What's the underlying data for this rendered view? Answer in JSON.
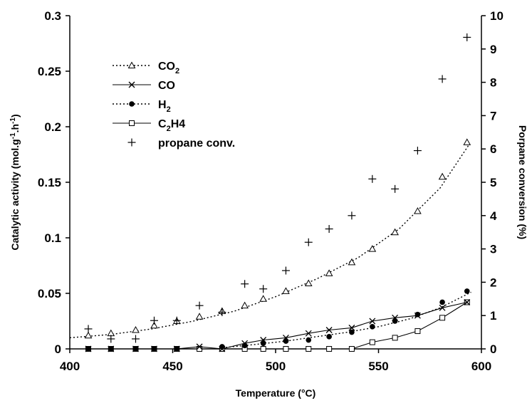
{
  "chart_data": {
    "type": "scatter",
    "xlabel": "Temperature (°C)",
    "ylabel": "Catalytic activity (mol.g-1.h-1)",
    "ylabel_parts": [
      "Catalytic activity (mol.g",
      "-1",
      ".h",
      "-1",
      ")"
    ],
    "y2label": "Porpane conversion (%)",
    "xlim": [
      400,
      600
    ],
    "ylim": [
      0,
      0.3
    ],
    "y2lim": [
      0,
      10
    ],
    "x_ticks": [
      "400",
      "450",
      "500",
      "550",
      "600"
    ],
    "y_ticks": [
      "0",
      "0.05",
      "0.1",
      "0.15",
      "0.2",
      "0.25",
      "0.3"
    ],
    "y2_ticks": [
      "0",
      "1",
      "2",
      "3",
      "4",
      "5",
      "6",
      "7",
      "8",
      "9",
      "10"
    ],
    "legend_position": "top-left",
    "legend": [
      {
        "label": "CO2",
        "base": "CO",
        "sub": "2",
        "after": "",
        "marker": "triangle",
        "line": "dotted"
      },
      {
        "label": "CO",
        "base": "CO",
        "sub": "",
        "after": "",
        "marker": "x",
        "line": "solid"
      },
      {
        "label": "H2",
        "base": "H",
        "sub": "2",
        "after": "",
        "marker": "dot",
        "line": "dotted"
      },
      {
        "label": "C2H4",
        "base": "C",
        "sub": "2",
        "after": "H4",
        "marker": "square",
        "line": "solid"
      },
      {
        "label": "propane conv.",
        "base": "propane conv.",
        "sub": "",
        "after": "",
        "marker": "plus",
        "line": "none"
      }
    ],
    "series": [
      {
        "name": "CO2",
        "axis": "left",
        "marker": "triangle",
        "line": "none",
        "x": [
          409,
          420,
          432,
          441,
          452,
          463,
          474,
          485,
          494,
          505,
          516,
          526,
          537,
          547,
          558,
          569,
          581,
          593
        ],
        "y": [
          0.012,
          0.014,
          0.017,
          0.021,
          0.025,
          0.029,
          0.034,
          0.039,
          0.045,
          0.052,
          0.059,
          0.068,
          0.078,
          0.09,
          0.105,
          0.124,
          0.155,
          0.186
        ]
      },
      {
        "name": "CO2 trend",
        "axis": "left",
        "marker": "none",
        "line": "dotted",
        "x": [
          400,
          420,
          440,
          460,
          480,
          500,
          520,
          540,
          560,
          580,
          594
        ],
        "y": [
          0.01,
          0.013,
          0.018,
          0.025,
          0.034,
          0.047,
          0.063,
          0.082,
          0.108,
          0.145,
          0.184
        ]
      },
      {
        "name": "CO",
        "axis": "left",
        "marker": "x",
        "line": "solid",
        "x": [
          409,
          420,
          432,
          441,
          452,
          463,
          474,
          485,
          494,
          505,
          516,
          526,
          537,
          547,
          558,
          569,
          581,
          593
        ],
        "y": [
          0,
          0,
          0,
          0,
          0,
          0.002,
          0,
          0.005,
          0.008,
          0.01,
          0.014,
          0.017,
          0.019,
          0.025,
          0.028,
          0.03,
          0.037,
          0.042
        ]
      },
      {
        "name": "H2",
        "axis": "left",
        "marker": "dot",
        "line": "none",
        "x": [
          409,
          420,
          432,
          441,
          452,
          474,
          485,
          494,
          505,
          516,
          526,
          537,
          547,
          558,
          569,
          581,
          593
        ],
        "y": [
          0,
          0,
          0,
          0,
          0,
          0.002,
          0.003,
          0.005,
          0.007,
          0.008,
          0.011,
          0.015,
          0.02,
          0.025,
          0.031,
          0.042,
          0.052
        ]
      },
      {
        "name": "H2 trend",
        "axis": "left",
        "marker": "none",
        "line": "dotted",
        "x": [
          474,
          490,
          505,
          520,
          535,
          550,
          565,
          580,
          595
        ],
        "y": [
          0.001,
          0.004,
          0.007,
          0.011,
          0.015,
          0.02,
          0.027,
          0.037,
          0.051
        ]
      },
      {
        "name": "C2H4",
        "axis": "left",
        "marker": "square",
        "line": "solid",
        "x": [
          409,
          420,
          432,
          441,
          452,
          463,
          474,
          485,
          494,
          505,
          516,
          526,
          537,
          547,
          558,
          569,
          581,
          593
        ],
        "y": [
          0,
          0,
          0,
          0,
          0,
          0,
          0,
          0,
          0,
          0,
          0,
          0,
          0,
          0.006,
          0.01,
          0.016,
          0.028,
          0.042
        ]
      },
      {
        "name": "propane conv.",
        "axis": "right",
        "marker": "plus",
        "line": "none",
        "x": [
          409,
          420,
          432,
          441,
          452,
          463,
          474,
          485,
          494,
          505,
          516,
          526,
          537,
          547,
          558,
          569,
          581,
          593
        ],
        "y": [
          0.6,
          0.3,
          0.3,
          0.85,
          0.85,
          1.3,
          1.1,
          1.95,
          1.8,
          2.35,
          3.2,
          3.6,
          4.0,
          5.1,
          4.8,
          5.95,
          8.1,
          9.35
        ]
      }
    ]
  }
}
